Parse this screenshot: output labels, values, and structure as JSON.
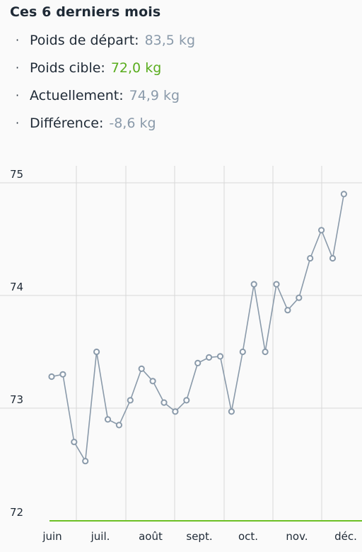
{
  "header": {
    "title": "Ces 6 derniers mois"
  },
  "stats": [
    {
      "label": "Poids de départ:",
      "value": "83,5 kg",
      "kind": "normal"
    },
    {
      "label": "Poids cible:",
      "value": "72,0 kg",
      "kind": "target"
    },
    {
      "label": "Actuellement:",
      "value": "74,9 kg",
      "kind": "normal"
    },
    {
      "label": "Différence:",
      "value": "-8,6 kg",
      "kind": "normal"
    }
  ],
  "colors": {
    "series": "#8a9aaa",
    "target": "#6cc024",
    "grid": "#d8d8d8",
    "value_text": "#8a9aaa",
    "target_text": "#5aad1f"
  },
  "chart_data": {
    "type": "line",
    "ylim": [
      72,
      75
    ],
    "y_ticks": [
      "75",
      "74",
      "73",
      "72"
    ],
    "y_tick_values": [
      75,
      74,
      73,
      72
    ],
    "x_ticks": [
      "juin",
      "juil.",
      "août",
      "sept.",
      "oct.",
      "nov.",
      "déc."
    ],
    "target_value": 72.0,
    "grid": true,
    "series": [
      {
        "values": [
          73.28,
          73.3,
          72.7,
          72.53,
          73.5,
          72.9,
          72.85,
          73.07,
          73.35,
          73.24,
          73.05,
          72.97,
          73.07,
          73.4,
          73.45,
          73.46,
          72.97,
          73.5,
          74.1,
          73.5,
          74.1,
          73.87,
          73.98,
          74.33,
          74.58,
          74.33,
          74.9
        ]
      }
    ]
  }
}
